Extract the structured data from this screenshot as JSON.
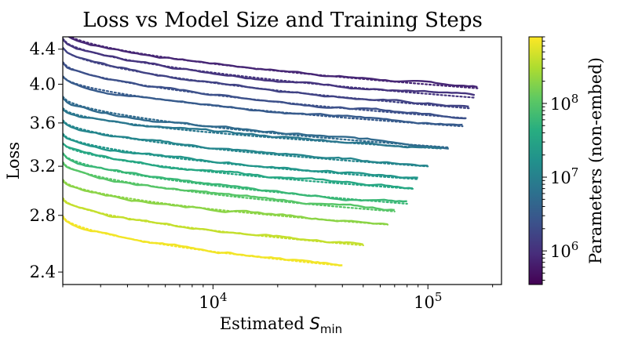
{
  "chart_data": {
    "type": "line",
    "title": "Loss vs Model Size and Training Steps",
    "xlabel": "Estimated",
    "xlabel_math_base": "S",
    "xlabel_math_sub": "min",
    "ylabel": "Loss",
    "x_scale": "log",
    "y_scale": "log",
    "xlim": [
      2000,
      220000
    ],
    "ylim": [
      2.32,
      4.55
    ],
    "x_ticks": [
      {
        "value": 10000,
        "base": "10",
        "exp": "4"
      },
      {
        "value": 100000,
        "base": "10",
        "exp": "5"
      }
    ],
    "y_ticks": [
      {
        "value": 2.4,
        "label": "2.4"
      },
      {
        "value": 2.8,
        "label": "2.8"
      },
      {
        "value": 3.2,
        "label": "3.2"
      },
      {
        "value": 3.6,
        "label": "3.6"
      },
      {
        "value": 4.0,
        "label": "4.0"
      },
      {
        "value": 4.4,
        "label": "4.4"
      }
    ],
    "grid": false,
    "colorbar": {
      "label": "Parameters (non-embed)",
      "scale": "log",
      "colormap": "viridis",
      "range": [
        350000,
        800000000
      ],
      "ticks": [
        {
          "value": 1000000,
          "base": "10",
          "exp": "6"
        },
        {
          "value": 10000000,
          "base": "10",
          "exp": "7"
        },
        {
          "value": 100000000,
          "base": "10",
          "exp": "8"
        }
      ]
    },
    "series": [
      {
        "params": 800000,
        "x_start": 2000,
        "x_end": 170000,
        "y_start": 4.62,
        "y_end": 3.97
      },
      {
        "params": 1100000,
        "x_start": 2000,
        "x_end": 165000,
        "y_start": 4.52,
        "y_end": 3.87
      },
      {
        "params": 1600000,
        "x_start": 2000,
        "x_end": 155000,
        "y_start": 4.41,
        "y_end": 3.76
      },
      {
        "params": 2300000,
        "x_start": 2000,
        "x_end": 150000,
        "y_start": 4.24,
        "y_end": 3.66
      },
      {
        "params": 3200000,
        "x_start": 2000,
        "x_end": 145000,
        "y_start": 4.08,
        "y_end": 3.58
      },
      {
        "params": 5000000,
        "x_start": 2000,
        "x_end": 125000,
        "y_start": 3.86,
        "y_end": 3.38
      },
      {
        "params": 7500000,
        "x_start": 2000,
        "x_end": 115000,
        "y_start": 3.74,
        "y_end": 3.37
      },
      {
        "params": 12000000,
        "x_start": 2000,
        "x_end": 100000,
        "y_start": 3.62,
        "y_end": 3.21
      },
      {
        "params": 20000000,
        "x_start": 2000,
        "x_end": 90000,
        "y_start": 3.49,
        "y_end": 3.1
      },
      {
        "params": 35000000,
        "x_start": 2000,
        "x_end": 85000,
        "y_start": 3.4,
        "y_end": 3.02
      },
      {
        "params": 60000000,
        "x_start": 2000,
        "x_end": 80000,
        "y_start": 3.31,
        "y_end": 2.9
      },
      {
        "params": 100000000,
        "x_start": 2000,
        "x_end": 70000,
        "y_start": 3.23,
        "y_end": 2.84
      },
      {
        "params": 200000000,
        "x_start": 2000,
        "x_end": 65000,
        "y_start": 3.08,
        "y_end": 2.74
      },
      {
        "params": 400000000,
        "x_start": 2000,
        "x_end": 50000,
        "y_start": 2.93,
        "y_end": 2.59
      },
      {
        "params": 700000000,
        "x_start": 2000,
        "x_end": 40000,
        "y_start": 2.79,
        "y_end": 2.45
      }
    ]
  }
}
